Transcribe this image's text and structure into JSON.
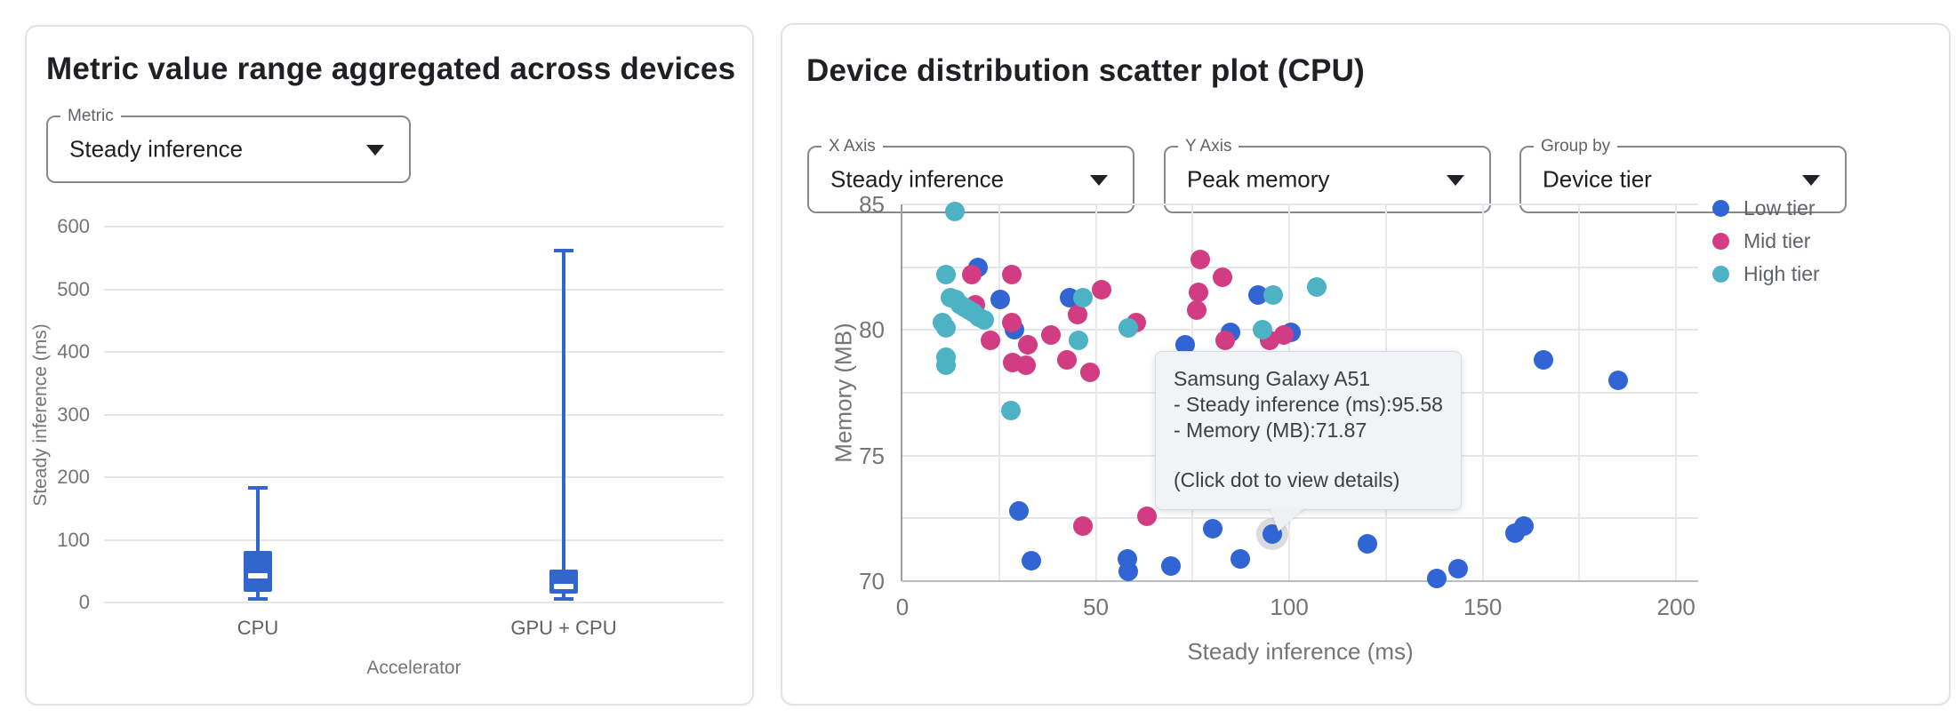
{
  "left_panel": {
    "title": "Metric value range aggregated across devices",
    "metric_dropdown": {
      "label": "Metric",
      "value": "Steady inference",
      "icon": "caret-down-icon"
    }
  },
  "right_panel": {
    "title": "Device distribution scatter plot (CPU)",
    "x_axis_dropdown": {
      "label": "X Axis",
      "value": "Steady inference",
      "icon": "caret-down-icon"
    },
    "y_axis_dropdown": {
      "label": "Y Axis",
      "value": "Peak memory",
      "icon": "caret-down-icon"
    },
    "group_by_dropdown": {
      "label": "Group by",
      "value": "Device tier",
      "icon": "caret-down-icon"
    },
    "legend": [
      {
        "label": "Low tier",
        "color": "#3165d4"
      },
      {
        "label": "Mid tier",
        "color": "#d23c82"
      },
      {
        "label": "High tier",
        "color": "#4db3c4"
      }
    ],
    "tooltip": {
      "device": "Samsung Galaxy A51",
      "metric_line_1": "- Steady inference (ms):95.58",
      "metric_line_2": "- Memory (MB):71.87",
      "hint": "(Click dot to view details)"
    }
  },
  "chart_data": [
    {
      "type": "boxplot",
      "title": "Metric value range aggregated across devices",
      "xlabel": "Accelerator",
      "ylabel": "Steady inference (ms)",
      "ylim": [
        0,
        600
      ],
      "yticks": [
        0,
        100,
        200,
        300,
        400,
        500,
        600
      ],
      "grid": true,
      "color": "#3366cc",
      "categories": [
        "CPU",
        "GPU + CPU"
      ],
      "series": [
        {
          "category": "CPU",
          "min": 6,
          "q1": 17,
          "median": 42,
          "q3": 82,
          "max": 183
        },
        {
          "category": "GPU + CPU",
          "min": 5,
          "q1": 14,
          "median": 25,
          "q3": 52,
          "max": 562
        }
      ]
    },
    {
      "type": "scatter",
      "title": "Device distribution scatter plot (CPU)",
      "xlabel": "Steady inference (ms)",
      "ylabel": "Memory (MB)",
      "xlim": [
        0,
        205.7
      ],
      "ylim": [
        70,
        85
      ],
      "xticks": [
        0,
        50,
        100,
        150,
        200
      ],
      "yticks": [
        70,
        75,
        80,
        85
      ],
      "x_minor_grid_step": 25,
      "y_minor_grid_step": 2.5,
      "grid": true,
      "legend_position": "right",
      "series": [
        {
          "name": "Low tier",
          "color": "#3165d4",
          "points": [
            [
              19.6,
              82.5
            ],
            [
              25.2,
              81.2
            ],
            [
              43.3,
              81.3
            ],
            [
              29,
              80
            ],
            [
              73,
              79.4
            ],
            [
              84.7,
              79.9
            ],
            [
              92,
              81.4
            ],
            [
              100.5,
              79.9
            ],
            [
              30,
              72.8
            ],
            [
              33.4,
              70.8
            ],
            [
              58.2,
              70.9
            ],
            [
              58.3,
              70.4
            ],
            [
              69.4,
              70.6
            ],
            [
              80.2,
              72.1
            ],
            [
              87.4,
              70.9
            ],
            [
              95.58,
              71.87
            ],
            [
              120.2,
              71.5
            ],
            [
              138.2,
              70.1
            ],
            [
              143.7,
              70.5
            ],
            [
              158.3,
              71.9
            ],
            [
              160.6,
              72.2
            ],
            [
              165.6,
              78.8
            ],
            [
              185.1,
              78
            ]
          ]
        },
        {
          "name": "Mid tier",
          "color": "#d23c82",
          "points": [
            [
              17.9,
              82.2
            ],
            [
              28.3,
              82.2
            ],
            [
              18.8,
              81
            ],
            [
              45.3,
              80.6
            ],
            [
              51.5,
              81.6
            ],
            [
              28.2,
              80.3
            ],
            [
              22.8,
              79.6
            ],
            [
              32.3,
              79.4
            ],
            [
              28.6,
              78.7
            ],
            [
              32,
              78.6
            ],
            [
              38.4,
              79.8
            ],
            [
              42.6,
              78.8
            ],
            [
              48.6,
              78.3
            ],
            [
              60.5,
              80.3
            ],
            [
              76.9,
              82.8
            ],
            [
              76.5,
              81.5
            ],
            [
              76,
              80.8
            ],
            [
              82.8,
              82.1
            ],
            [
              83.5,
              79.6
            ],
            [
              95,
              79.6
            ],
            [
              98.5,
              79.8
            ],
            [
              46.7,
              72.2
            ],
            [
              63.1,
              72.6
            ]
          ]
        },
        {
          "name": "High tier",
          "color": "#4db3c4",
          "points": [
            [
              13.5,
              84.7
            ],
            [
              11.2,
              82.2
            ],
            [
              12.3,
              81.3
            ],
            [
              13.9,
              81.2
            ],
            [
              15,
              81
            ],
            [
              16.2,
              80.9
            ],
            [
              17.3,
              80.8
            ],
            [
              18.5,
              80.7
            ],
            [
              19.8,
              80.5
            ],
            [
              21.1,
              80.4
            ],
            [
              10.4,
              80.3
            ],
            [
              11.2,
              80.1
            ],
            [
              11.2,
              78.9
            ],
            [
              11.2,
              78.6
            ],
            [
              46.7,
              81.3
            ],
            [
              45.6,
              79.6
            ],
            [
              58.4,
              80.1
            ],
            [
              28.1,
              76.8
            ],
            [
              93,
              80
            ],
            [
              95.9,
              81.4
            ],
            [
              107,
              81.7
            ]
          ]
        }
      ],
      "highlighted_point": {
        "series": "Low tier",
        "x": 95.58,
        "y": 71.87,
        "device": "Samsung Galaxy A51"
      }
    }
  ]
}
